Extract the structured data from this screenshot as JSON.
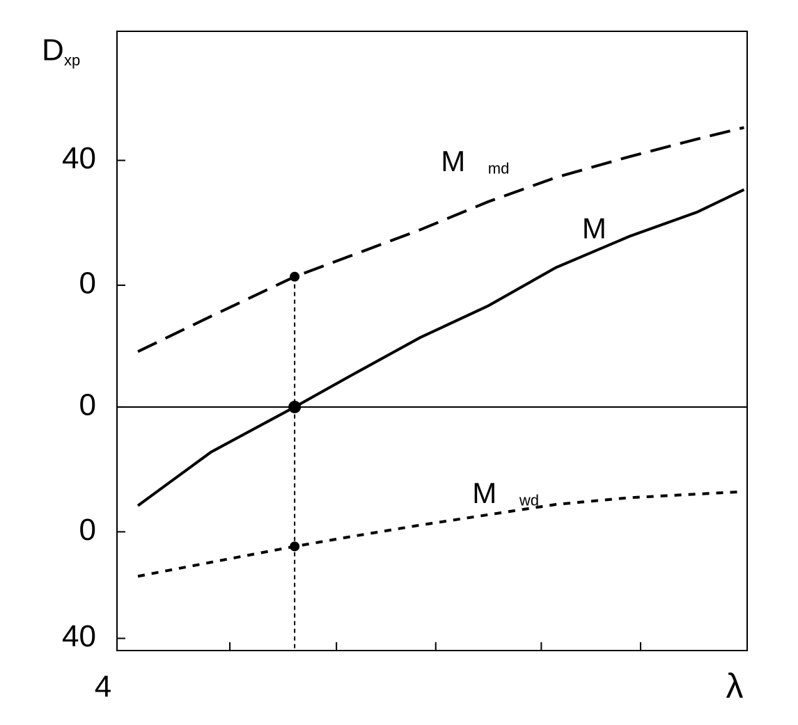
{
  "chart_data": {
    "type": "line",
    "ylabel": "D",
    "ylabel_sub": "xp",
    "xlabel": "λ",
    "x": [
      4.2,
      4.9,
      5.7,
      6.2,
      6.9,
      7.55,
      8.2,
      8.9,
      9.55,
      10
    ],
    "series": [
      {
        "name": "M",
        "sub": "md",
        "color": "#000",
        "dash": "dashed",
        "values": [
          9.1,
          14.9,
          21.4,
          24.6,
          29.1,
          33.7,
          37.7,
          41.1,
          44,
          45.9
        ]
      },
      {
        "name": "M",
        "color": "#000",
        "dash": "solid",
        "values": [
          -16.2,
          -7.4,
          0,
          4.8,
          11.4,
          16.6,
          22.9,
          28,
          32,
          35.7
        ]
      },
      {
        "name": "M",
        "sub": "wd",
        "color": "#000",
        "dash": "dotted",
        "values": [
          -27.8,
          -25.5,
          -22.9,
          -21.4,
          -19.4,
          -17.7,
          -16,
          -14.9,
          -14.3,
          -13.9
        ]
      }
    ],
    "marked_index": 2,
    "vline_x": 5.7,
    "hline_y": 0,
    "xlim": [
      4,
      10.03
    ],
    "xticks": [
      5.08,
      6.1,
      7.05,
      8.06,
      9.01
    ],
    "ylim": [
      -40,
      61.7
    ],
    "yticks": [
      {
        "value": -38,
        "label": "40"
      },
      {
        "value": -20.5,
        "label": "0"
      },
      0,
      {
        "value": 20,
        "label": "0"
      },
      {
        "value": 40.5,
        "label": "40"
      }
    ]
  }
}
